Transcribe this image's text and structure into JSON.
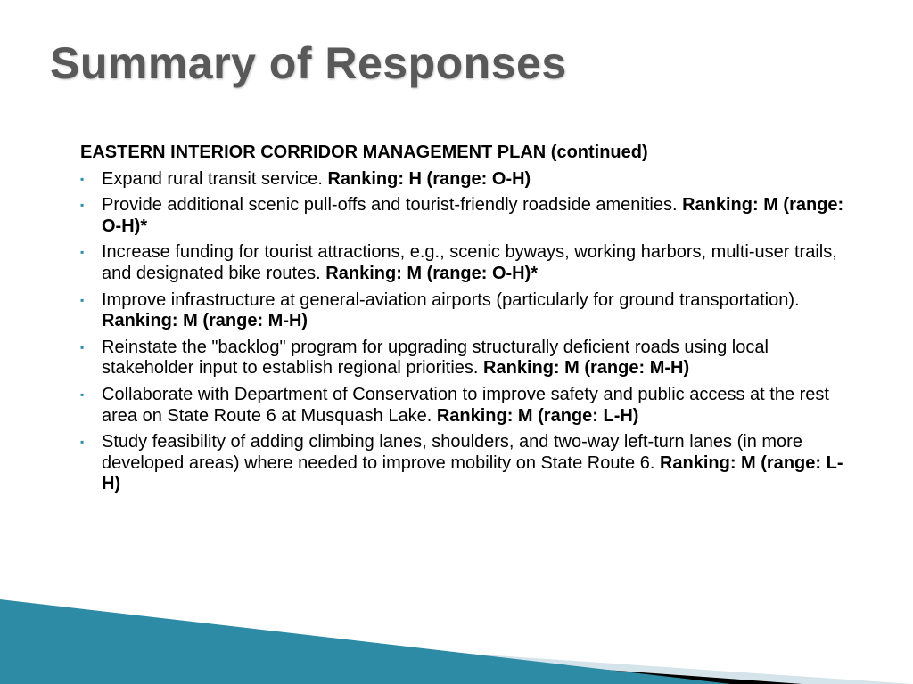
{
  "slide": {
    "title": "Summary of Responses",
    "subheading": "EASTERN INTERIOR CORRIDOR MANAGEMENT PLAN (continued)",
    "items": [
      {
        "text": "Expand rural transit service.  ",
        "ranking": "Ranking: H (range: O-H)"
      },
      {
        "text": "Provide additional scenic pull-offs and tourist-friendly roadside amenities.  ",
        "ranking": "Ranking: M (range: O-H)*"
      },
      {
        "text": "Increase funding for tourist attractions, e.g., scenic byways, working harbors, multi-user trails, and designated bike routes.  ",
        "ranking": "Ranking: M (range: O-H)*"
      },
      {
        "text": "Improve infrastructure at general-aviation airports (particularly for ground transportation).  ",
        "ranking": "Ranking: M (range: M-H)"
      },
      {
        "text": "Reinstate the \"backlog\" program for upgrading structurally deficient roads using local stakeholder input to establish regional priorities.  ",
        "ranking": "Ranking: M (range: M-H)"
      },
      {
        "text": "Collaborate with Department of Conservation to improve safety and public access at the rest area on State Route 6 at Musquash Lake.  ",
        "ranking": "Ranking: M (range: L-H)"
      },
      {
        "text": "Study feasibility of adding climbing lanes, shoulders, and two-way left-turn lanes (in more developed areas) where needed to improve mobility on State Route 6.  ",
        "ranking": "Ranking: M (range: L-H)"
      }
    ]
  },
  "style": {
    "title_color": "#595959",
    "title_fontsize": 50,
    "body_fontsize": 20,
    "bullet_color": "#2e8ba6",
    "background_color": "#ffffff",
    "decorations": {
      "teal": "#2e8ba6",
      "black": "#000000",
      "lightblue": "#d5e3ea"
    }
  }
}
